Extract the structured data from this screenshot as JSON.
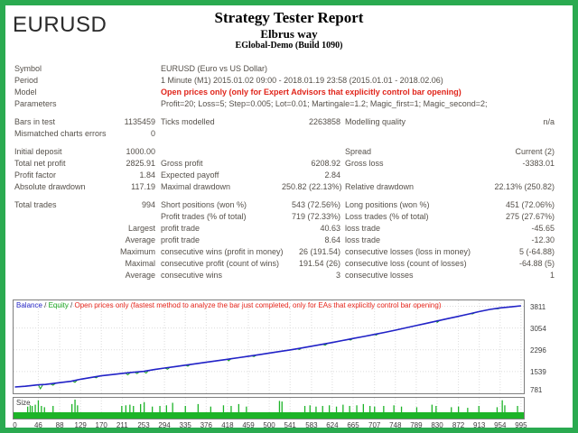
{
  "header": {
    "symbol": "EURUSD",
    "title": "Strategy Tester Report",
    "subtitle": "Elbrus way",
    "build": "EGlobal-Demo (Build 1090)"
  },
  "table": {
    "rows": [
      {
        "type": "info",
        "cells": [
          "Symbol",
          "EURUSD (Euro vs US Dollar)"
        ]
      },
      {
        "type": "info",
        "cells": [
          "Period",
          "1 Minute (M1) 2015.01.02 09:00 - 2018.01.19 23:58 (2015.01.01 - 2018.02.06)"
        ]
      },
      {
        "type": "info",
        "red": true,
        "cells": [
          "Model",
          "Open prices only (only for Expert Advisors that explicitly control bar opening)"
        ]
      },
      {
        "type": "info",
        "cells": [
          "Parameters",
          "Profit=20; Loss=5; Step=0.005; Lot=0.01; Martingale=1.2; Magic_first=1; Magic_second=2;"
        ]
      },
      {
        "type": "spacer"
      },
      {
        "type": "data",
        "cells": [
          "Bars in test",
          "1135459",
          "Ticks modelled",
          "2263858",
          "Modelling quality",
          "n/a"
        ]
      },
      {
        "type": "data",
        "cells": [
          "Mismatched charts errors",
          "0",
          "",
          "",
          "",
          ""
        ]
      },
      {
        "type": "spacer"
      },
      {
        "type": "data",
        "cells": [
          "Initial deposit",
          "1000.00",
          "",
          "",
          "Spread",
          "Current (2)"
        ]
      },
      {
        "type": "data",
        "cells": [
          "Total net profit",
          "2825.91",
          "Gross profit",
          "6208.92",
          "Gross loss",
          "-3383.01"
        ]
      },
      {
        "type": "data",
        "cells": [
          "Profit factor",
          "1.84",
          "Expected payoff",
          "2.84",
          "",
          ""
        ]
      },
      {
        "type": "data",
        "cells": [
          "Absolute drawdown",
          "117.19",
          "Maximal drawdown",
          "250.82 (22.13%)",
          "Relative drawdown",
          "22.13% (250.82)"
        ]
      },
      {
        "type": "spacer"
      },
      {
        "type": "data",
        "cells": [
          "Total trades",
          "994",
          "Short positions (won %)",
          "543 (72.56%)",
          "Long positions (won %)",
          "451 (72.06%)"
        ]
      },
      {
        "type": "data",
        "cells": [
          "",
          "",
          "Profit trades (% of total)",
          "719 (72.33%)",
          "Loss trades (% of total)",
          "275 (27.67%)"
        ]
      },
      {
        "type": "data",
        "cells": [
          "",
          "Largest",
          "profit trade",
          "40.63",
          "loss trade",
          "-45.65"
        ]
      },
      {
        "type": "data",
        "cells": [
          "",
          "Average",
          "profit trade",
          "8.64",
          "loss trade",
          "-12.30"
        ]
      },
      {
        "type": "data",
        "cells": [
          "",
          "Maximum",
          "consecutive wins (profit in money)",
          "26 (191.54)",
          "consecutive losses (loss in money)",
          "5 (-64.88)"
        ]
      },
      {
        "type": "data",
        "cells": [
          "",
          "Maximal",
          "consecutive profit (count of wins)",
          "191.54 (26)",
          "consecutive loss (count of losses)",
          "-64.88 (5)"
        ]
      },
      {
        "type": "data",
        "cells": [
          "",
          "Average",
          "consecutive wins",
          "3",
          "consecutive losses",
          "1"
        ]
      }
    ]
  },
  "chart_data": {
    "type": "line",
    "legend": {
      "balance_label": "Balance",
      "equity_label": "Equity",
      "separator": " / ",
      "note": "Open prices only (fastest method to analyze the bar just completed, only for EAs that explicitly control bar opening)"
    },
    "size_panel_label": "Size",
    "xlabel": "",
    "ylabel": "",
    "x_ticks": [
      0,
      46,
      88,
      129,
      170,
      211,
      253,
      294,
      335,
      376,
      418,
      459,
      500,
      541,
      583,
      624,
      665,
      707,
      748,
      789,
      830,
      872,
      913,
      954,
      995
    ],
    "y_ticks": [
      3811,
      3054,
      2296,
      1539,
      781
    ],
    "ylim": [
      781,
      3811
    ],
    "xlim": [
      0,
      995
    ],
    "grid": "dotted",
    "legend_position": "top-left-inside",
    "colors": {
      "balance": "#2222c8",
      "equity": "#18a51e",
      "note_text": "#e8281e",
      "size_bars": "#1db428",
      "grid": "#dcdcdc",
      "page_border": "#2aaa50"
    },
    "series": [
      {
        "name": "Balance",
        "points": [
          [
            0,
            1000
          ],
          [
            20,
            1025
          ],
          [
            46,
            1075
          ],
          [
            60,
            1090
          ],
          [
            88,
            1150
          ],
          [
            110,
            1200
          ],
          [
            129,
            1270
          ],
          [
            150,
            1335
          ],
          [
            170,
            1390
          ],
          [
            190,
            1430
          ],
          [
            211,
            1475
          ],
          [
            230,
            1510
          ],
          [
            253,
            1545
          ],
          [
            275,
            1610
          ],
          [
            294,
            1660
          ],
          [
            315,
            1710
          ],
          [
            335,
            1760
          ],
          [
            356,
            1810
          ],
          [
            376,
            1860
          ],
          [
            397,
            1915
          ],
          [
            418,
            1965
          ],
          [
            440,
            2020
          ],
          [
            459,
            2070
          ],
          [
            480,
            2125
          ],
          [
            500,
            2180
          ],
          [
            520,
            2235
          ],
          [
            541,
            2290
          ],
          [
            562,
            2355
          ],
          [
            583,
            2420
          ],
          [
            604,
            2485
          ],
          [
            624,
            2550
          ],
          [
            645,
            2620
          ],
          [
            665,
            2690
          ],
          [
            686,
            2760
          ],
          [
            707,
            2830
          ],
          [
            728,
            2905
          ],
          [
            748,
            2980
          ],
          [
            769,
            3060
          ],
          [
            789,
            3140
          ],
          [
            810,
            3220
          ],
          [
            830,
            3300
          ],
          [
            851,
            3380
          ],
          [
            872,
            3460
          ],
          [
            893,
            3545
          ],
          [
            913,
            3625
          ],
          [
            934,
            3700
          ],
          [
            954,
            3755
          ],
          [
            975,
            3790
          ],
          [
            995,
            3826
          ]
        ]
      },
      {
        "name": "Equity",
        "derivation": "balance minus temporary drawdown dips",
        "dips": [
          [
            50,
            140
          ],
          [
            75,
            60
          ],
          [
            118,
            70
          ],
          [
            160,
            40
          ],
          [
            222,
            70
          ],
          [
            240,
            60
          ],
          [
            258,
            75
          ],
          [
            300,
            55
          ],
          [
            340,
            45
          ],
          [
            420,
            60
          ],
          [
            470,
            40
          ],
          [
            560,
            45
          ],
          [
            610,
            50
          ],
          [
            660,
            40
          ],
          [
            710,
            35
          ],
          [
            830,
            55
          ],
          [
            900,
            30
          ],
          [
            950,
            25
          ]
        ]
      }
    ],
    "size_spikes": [
      [
        25,
        0.45
      ],
      [
        30,
        0.55
      ],
      [
        34,
        0.5
      ],
      [
        40,
        0.6
      ],
      [
        46,
        0.95
      ],
      [
        52,
        0.5
      ],
      [
        58,
        0.4
      ],
      [
        75,
        0.5
      ],
      [
        112,
        0.65
      ],
      [
        118,
        1.0
      ],
      [
        123,
        0.55
      ],
      [
        210,
        0.5
      ],
      [
        218,
        0.55
      ],
      [
        226,
        0.6
      ],
      [
        233,
        0.5
      ],
      [
        247,
        0.65
      ],
      [
        254,
        0.8
      ],
      [
        270,
        0.45
      ],
      [
        285,
        0.5
      ],
      [
        298,
        0.55
      ],
      [
        310,
        0.75
      ],
      [
        335,
        0.5
      ],
      [
        360,
        0.65
      ],
      [
        385,
        0.45
      ],
      [
        410,
        0.55
      ],
      [
        425,
        0.5
      ],
      [
        440,
        0.65
      ],
      [
        455,
        0.45
      ],
      [
        520,
        0.9
      ],
      [
        525,
        0.85
      ],
      [
        570,
        0.5
      ],
      [
        580,
        0.55
      ],
      [
        592,
        0.45
      ],
      [
        605,
        0.5
      ],
      [
        618,
        0.55
      ],
      [
        632,
        0.45
      ],
      [
        645,
        0.6
      ],
      [
        658,
        0.5
      ],
      [
        672,
        0.55
      ],
      [
        685,
        0.65
      ],
      [
        698,
        0.5
      ],
      [
        707,
        0.45
      ],
      [
        725,
        0.5
      ],
      [
        745,
        0.55
      ],
      [
        760,
        0.45
      ],
      [
        790,
        0.4
      ],
      [
        820,
        0.6
      ],
      [
        828,
        0.5
      ],
      [
        858,
        0.4
      ],
      [
        872,
        0.45
      ],
      [
        890,
        0.35
      ],
      [
        912,
        0.5
      ],
      [
        948,
        0.4
      ],
      [
        958,
        0.95
      ],
      [
        963,
        0.55
      ],
      [
        988,
        0.5
      ]
    ]
  }
}
